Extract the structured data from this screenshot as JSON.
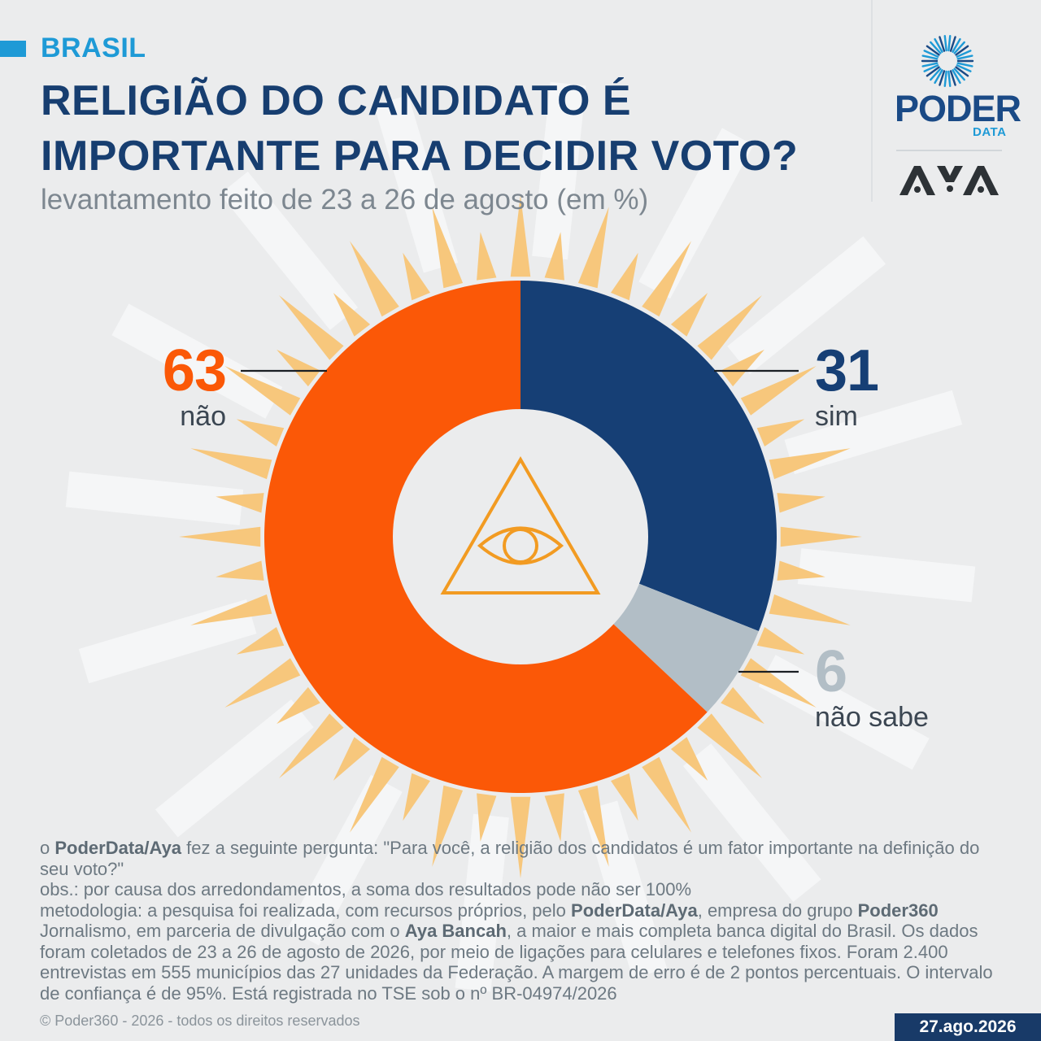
{
  "header": {
    "tag": "BRASIL",
    "title": "RELIGIÃO DO CANDIDATO É IMPORTANTE PARA DECIDIR VOTO?",
    "subtitle": "levantamento feito de 23 a 26 de agosto (em %)"
  },
  "logos": {
    "poder_word": "PODER",
    "poder_sub": "DATA",
    "partner": "AYA"
  },
  "chart_data": {
    "type": "pie",
    "title": "RELIGIÃO DO CANDIDATO É IMPORTANTE PARA DECIDIR VOTO?",
    "subtitle": "levantamento feito de 23 a 26 de agosto (em %)",
    "categories": [
      "sim",
      "não sabe",
      "não"
    ],
    "values": [
      31,
      6,
      63
    ],
    "colors": [
      "#163f75",
      "#b2bec6",
      "#fb5807"
    ],
    "donut": true
  },
  "labels": {
    "nao": {
      "value": "63",
      "text": "não"
    },
    "sim": {
      "value": "31",
      "text": "sim"
    },
    "nao_sabe": {
      "value": "6",
      "text": "não sabe"
    }
  },
  "notes": {
    "q_prefix": "o ",
    "q_org": "PoderData/Aya",
    "q_text": " fez a seguinte pergunta: \"Para você, a religião dos candidatos é um fator importante na definição do seu voto?\"",
    "obs": "obs.: por causa dos arredondamentos, a soma dos resultados pode não ser 100%",
    "m1": "metodologia: a pesquisa foi realizada, com recursos próprios, pelo ",
    "m_org": "PoderData/Aya",
    "m2": ", empresa do grupo ",
    "m_group": "Poder360",
    "m3": " Jornalismo, em parceria de divulgação com o ",
    "m_partner": "Aya Bancah",
    "m4": ", a maior e mais completa banca digital do Brasil. Os dados foram coletados de 23 a 26 de agosto de 2026, por meio de ligações para celulares e telefones fixos. Foram 2.400 entrevistas em 555 municípios das 27 unidades da Federação. A margem de erro é de 2 pontos percentuais. O intervalo de confiança é de 95%. Está registrada no TSE sob o nº BR-04974/2026"
  },
  "footer": {
    "copyright": "© Poder360 - 2026 - todos os direitos reservados",
    "date": "27.ago.2026"
  },
  "icons": {
    "center": "all-seeing-eye-icon",
    "poder": "sun-burst-icon"
  }
}
